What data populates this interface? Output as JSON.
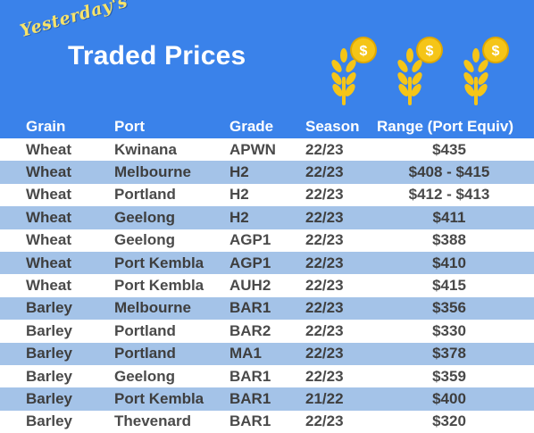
{
  "header": {
    "kicker": "Yesterday's",
    "title": "Traded Prices",
    "icons": [
      "wheat-coin-icon",
      "wheat-coin-icon",
      "wheat-coin-icon"
    ]
  },
  "colors": {
    "banner": "#3a82ea",
    "row_alt": "#a4c3e8",
    "kicker": "#f7e36a",
    "wheat_gold": "#f5c518"
  },
  "table": {
    "columns": [
      "Grain",
      "Port",
      "Grade",
      "Season",
      "Range (Port Equiv)"
    ],
    "rows": [
      {
        "grain": "Wheat",
        "port": "Kwinana",
        "grade": "APWN",
        "season": "22/23",
        "range": "$435"
      },
      {
        "grain": "Wheat",
        "port": "Melbourne",
        "grade": "H2",
        "season": "22/23",
        "range": "$408 - $415"
      },
      {
        "grain": "Wheat",
        "port": "Portland",
        "grade": "H2",
        "season": "22/23",
        "range": "$412 - $413"
      },
      {
        "grain": "Wheat",
        "port": "Geelong",
        "grade": "H2",
        "season": "22/23",
        "range": "$411"
      },
      {
        "grain": "Wheat",
        "port": "Geelong",
        "grade": "AGP1",
        "season": "22/23",
        "range": "$388"
      },
      {
        "grain": "Wheat",
        "port": "Port Kembla",
        "grade": "AGP1",
        "season": "22/23",
        "range": "$410"
      },
      {
        "grain": "Wheat",
        "port": "Port Kembla",
        "grade": "AUH2",
        "season": "22/23",
        "range": "$415"
      },
      {
        "grain": "Barley",
        "port": "Melbourne",
        "grade": "BAR1",
        "season": "22/23",
        "range": "$356"
      },
      {
        "grain": "Barley",
        "port": "Portland",
        "grade": "BAR2",
        "season": "22/23",
        "range": "$330"
      },
      {
        "grain": "Barley",
        "port": "Portland",
        "grade": "MA1",
        "season": "22/23",
        "range": "$378"
      },
      {
        "grain": "Barley",
        "port": "Geelong",
        "grade": "BAR1",
        "season": "22/23",
        "range": "$359"
      },
      {
        "grain": "Barley",
        "port": "Port Kembla",
        "grade": "BAR1",
        "season": "21/22",
        "range": "$400"
      },
      {
        "grain": "Barley",
        "port": "Thevenard",
        "grade": "BAR1",
        "season": "22/23",
        "range": "$320"
      }
    ]
  }
}
